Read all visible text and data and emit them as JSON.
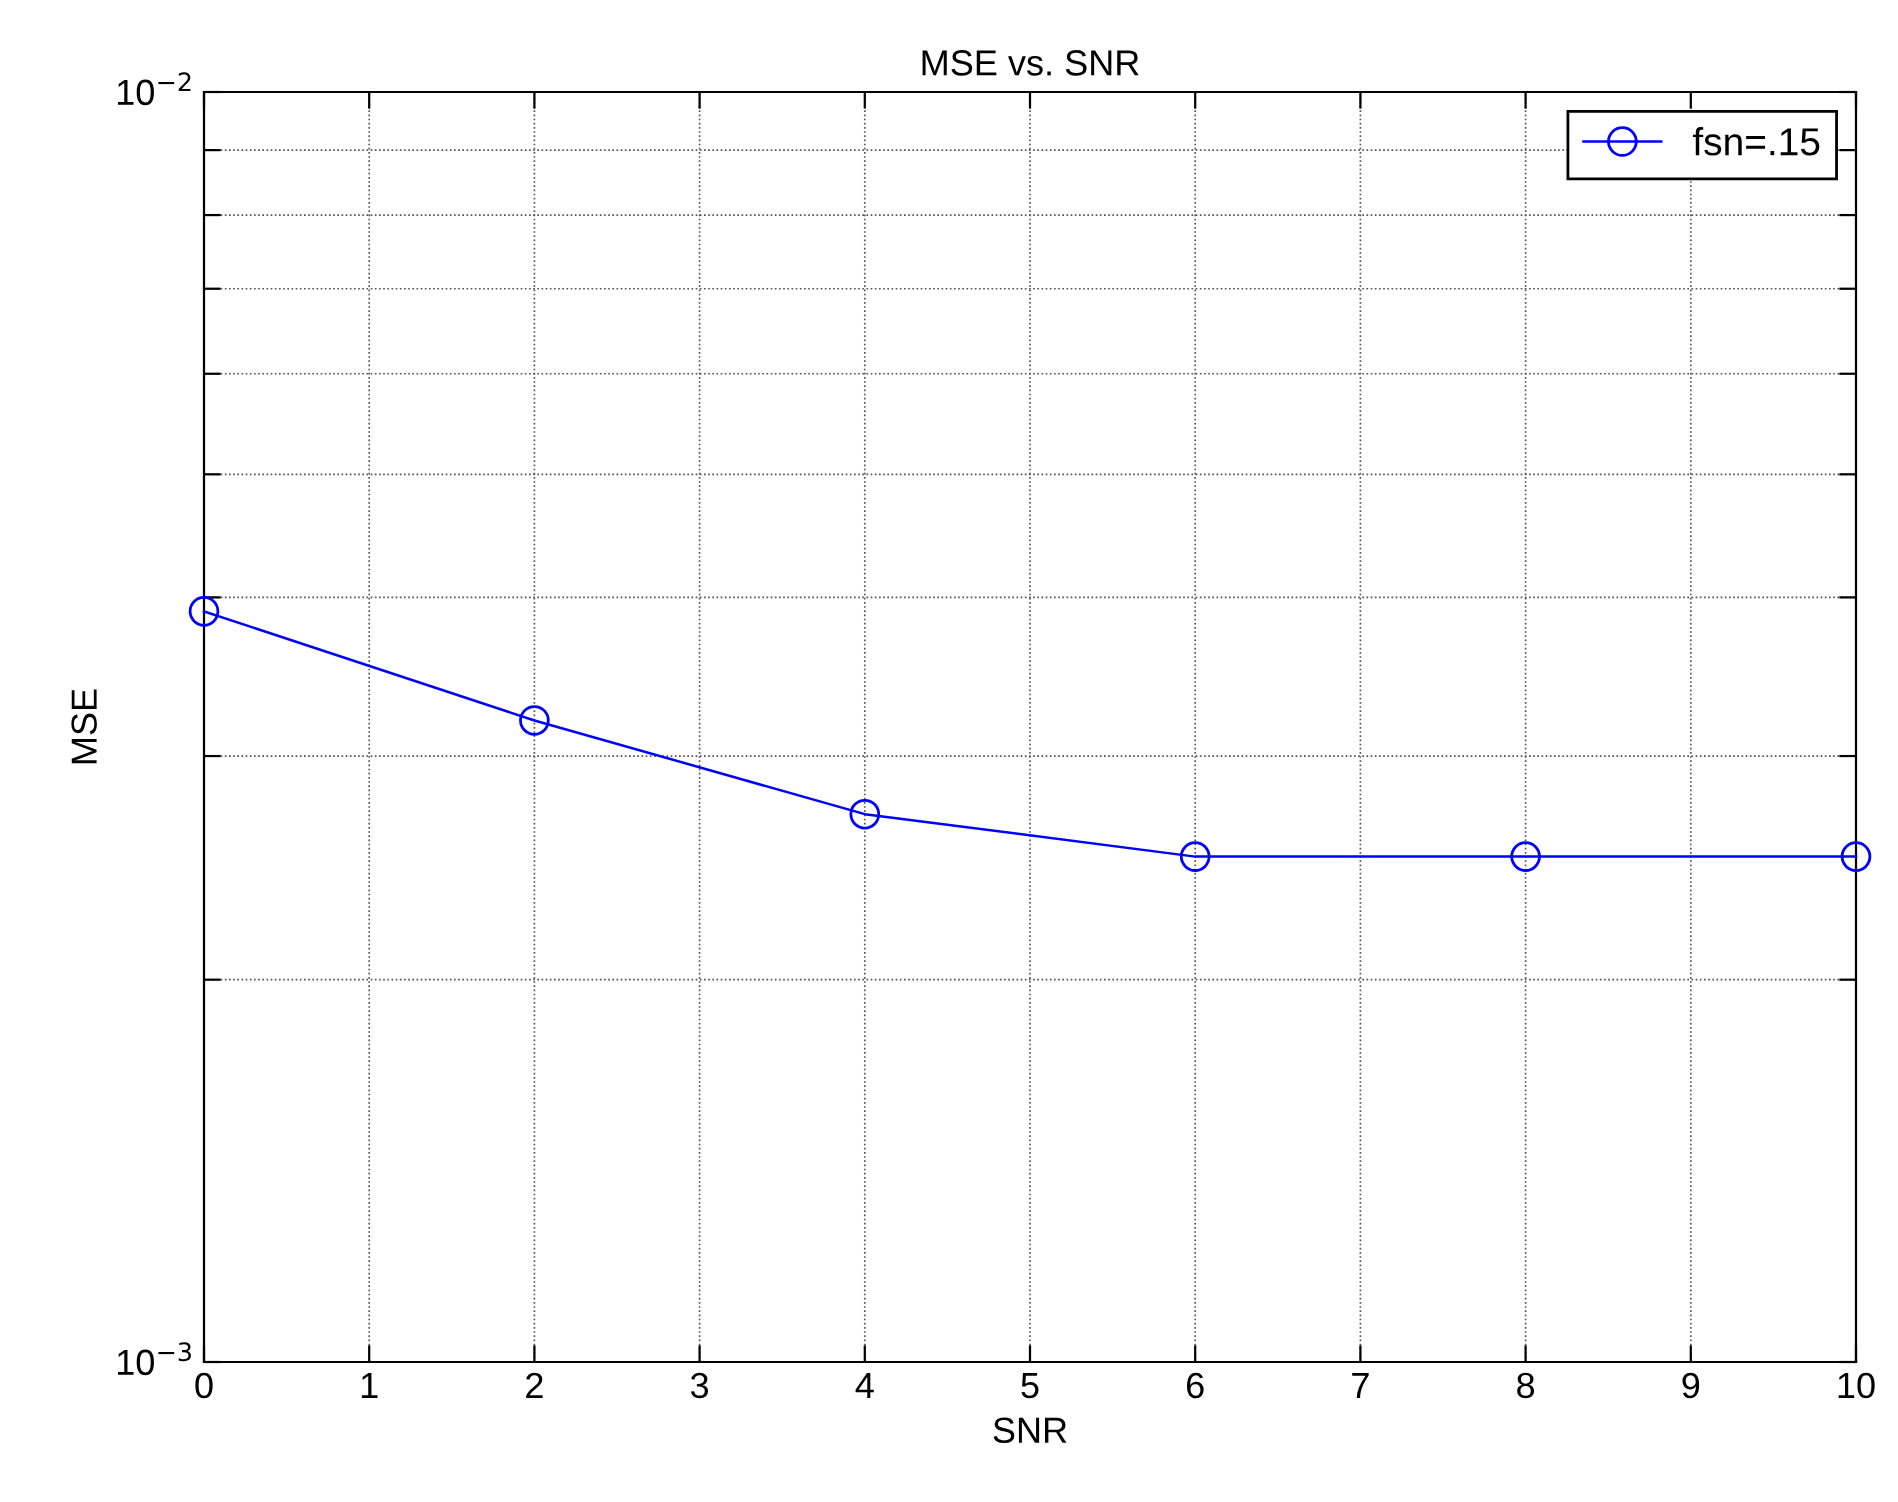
{
  "chart_data": {
    "type": "line",
    "title": "MSE vs. SNR",
    "xlabel": "SNR",
    "ylabel": "MSE",
    "log": "y",
    "x": [
      0,
      2,
      4,
      6,
      8,
      10
    ],
    "series": [
      {
        "name": "fsn=.15",
        "color": "#0000ff",
        "values": [
          0.0039,
          0.0032,
          0.0027,
          0.0025,
          0.0025,
          0.0025
        ]
      }
    ],
    "xlim": [
      0,
      10
    ],
    "xticks": [
      0,
      1,
      2,
      3,
      4,
      5,
      6,
      7,
      8,
      9,
      10
    ],
    "ylim": [
      0.001,
      0.01
    ],
    "yticks": [
      {
        "value": 0.001,
        "label": "10$^{−3}$"
      },
      {
        "value": 0.002,
        "label": null
      },
      {
        "value": 0.003,
        "label": null
      },
      {
        "value": 0.004,
        "label": null
      },
      {
        "value": 0.005,
        "label": null
      },
      {
        "value": 0.006,
        "label": null
      },
      {
        "value": 0.007,
        "label": null
      },
      {
        "value": 0.008,
        "label": null
      },
      {
        "value": 0.009,
        "label": null
      },
      {
        "value": 0.01,
        "label": "10$^{−2}$"
      }
    ],
    "grid": true,
    "legend": "top right",
    "marker": "circle",
    "line_style": "solid"
  }
}
